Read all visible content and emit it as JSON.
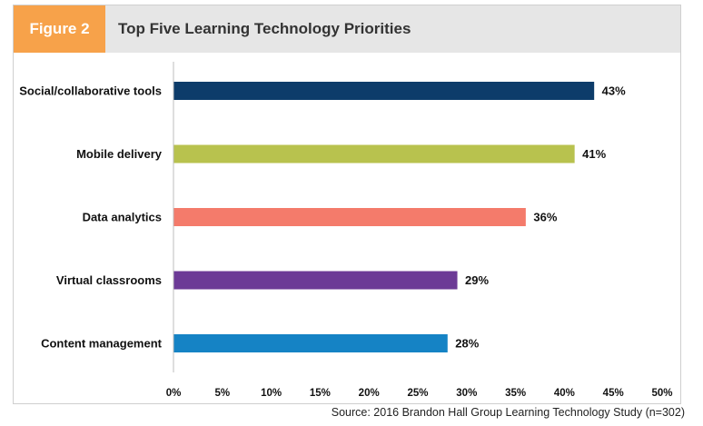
{
  "figure": {
    "tab_label": "Figure 2",
    "title": "Top Five Learning Technology Priorities"
  },
  "source": "Source: 2016 Brandon Hall Group Learning Technology Study (n=302)",
  "colors": {
    "tab": "#f7a24a",
    "header": "#e6e6e6"
  },
  "chart_data": {
    "type": "bar",
    "orientation": "horizontal",
    "title": "Top Five Learning Technology Priorities",
    "categories": [
      "Social/collaborative tools",
      "Mobile delivery",
      "Data analytics",
      "Virtual classrooms",
      "Content management"
    ],
    "values": [
      43,
      41,
      36,
      29,
      28
    ],
    "value_labels": [
      "43%",
      "41%",
      "36%",
      "29%",
      "28%"
    ],
    "colors": [
      "#0d3c6a",
      "#b8c24e",
      "#f47b6b",
      "#6c3a96",
      "#1583c5"
    ],
    "xlim": [
      0,
      50
    ],
    "x_ticks": [
      0,
      5,
      10,
      15,
      20,
      25,
      30,
      35,
      40,
      45,
      50
    ],
    "x_tick_labels": [
      "0%",
      "5%",
      "10%",
      "15%",
      "20%",
      "25%",
      "30%",
      "35%",
      "40%",
      "45%",
      "50%"
    ],
    "xlabel": "",
    "ylabel": "",
    "grid": false,
    "legend": "none"
  }
}
